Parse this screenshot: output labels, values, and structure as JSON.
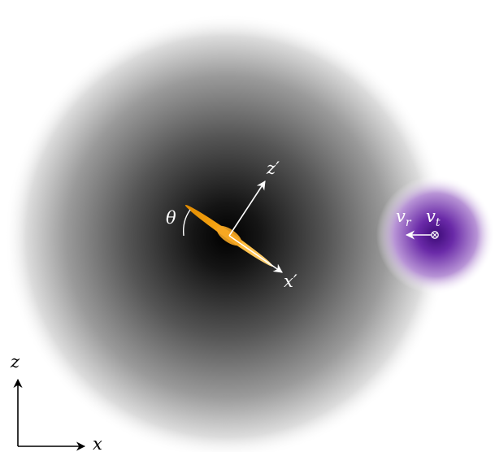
{
  "labels": {
    "theta": "θ",
    "z_prime": "z′",
    "x_prime": "x′",
    "v_r": {
      "base": "v",
      "sub": "r"
    },
    "v_t": {
      "base": "v",
      "sub": "t"
    },
    "axis_z": "z",
    "axis_x": "x"
  },
  "colors": {
    "background": "#ffffff",
    "host_core": "#000000",
    "host_edge": "#ffffff",
    "disk": "#f5a623",
    "companion_core": "#4b0f8c",
    "companion_edge": "#ffffff",
    "annotation_light": "#ffffff",
    "annotation_dark": "#000000"
  }
}
